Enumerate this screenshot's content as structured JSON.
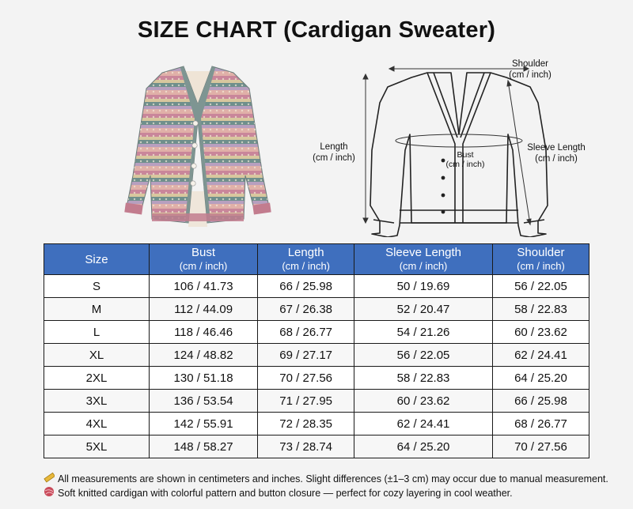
{
  "title": "SIZE CHART (Cardigan Sweater)",
  "diagram": {
    "shoulder": {
      "name": "Shoulder",
      "unit": "(cm / inch)"
    },
    "length": {
      "name": "Length",
      "unit": "(cm / inch)"
    },
    "bust": {
      "name": "Bust",
      "unit": "(cm / inch)"
    },
    "sleeve": {
      "name": "Sleeve Length",
      "unit": "(cm / inch)"
    }
  },
  "table": {
    "headers": [
      {
        "name": "Size",
        "unit": ""
      },
      {
        "name": "Bust",
        "unit": "(cm / inch)"
      },
      {
        "name": "Length",
        "unit": "(cm / inch)"
      },
      {
        "name": "Sleeve Length",
        "unit": "(cm / inch)"
      },
      {
        "name": "Shoulder",
        "unit": "(cm / inch)"
      }
    ],
    "rows": [
      [
        "S",
        "106 / 41.73",
        "66 / 25.98",
        "50 / 19.69",
        "56 / 22.05"
      ],
      [
        "M",
        "112 / 44.09",
        "67 / 26.38",
        "52 / 20.47",
        "58 / 22.83"
      ],
      [
        "L",
        "118 / 46.46",
        "68 / 26.77",
        "54 / 21.26",
        "60 / 23.62"
      ],
      [
        "XL",
        "124 / 48.82",
        "69 / 27.17",
        "56 / 22.05",
        "62 / 24.41"
      ],
      [
        "2XL",
        "130 / 51.18",
        "70 / 27.56",
        "58 / 22.83",
        "64 / 25.20"
      ],
      [
        "3XL",
        "136 / 53.54",
        "71 / 27.95",
        "60 / 23.62",
        "66 / 25.98"
      ],
      [
        "4XL",
        "142 / 55.91",
        "72 / 28.35",
        "62 / 24.41",
        "68 / 26.77"
      ],
      [
        "5XL",
        "148 / 58.27",
        "73 / 28.74",
        "64 / 25.20",
        "70 / 27.56"
      ]
    ]
  },
  "notes": [
    {
      "icon": "ruler-icon",
      "text": "All measurements are shown in centimeters and inches. Slight differences (±1–3 cm) may occur due to manual measurement."
    },
    {
      "icon": "yarn-icon",
      "text": "Soft knitted cardigan with colorful pattern and button closure — perfect for cozy layering in cool weather."
    }
  ],
  "colors": {
    "header_bg": "#3f6fbe",
    "header_text": "#ffffff",
    "border": "#1a1a1a"
  }
}
